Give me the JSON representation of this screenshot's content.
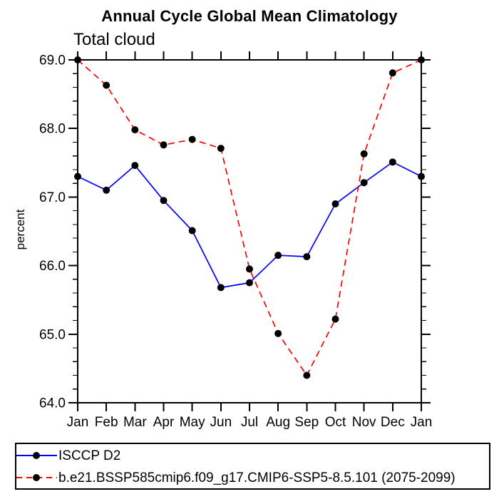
{
  "page": {
    "background": "#ffffff"
  },
  "chart_data": {
    "type": "line",
    "title": "Annual Cycle Global Mean Climatology",
    "subtitle": "Total cloud",
    "ylabel": "percent",
    "xlabel": "",
    "categories": [
      "Jan",
      "Feb",
      "Mar",
      "Apr",
      "May",
      "Jun",
      "Jul",
      "Aug",
      "Sep",
      "Oct",
      "Nov",
      "Dec",
      "Jan"
    ],
    "series": [
      {
        "name": "ISCCP D2",
        "color": "#0000ff",
        "line_style": "solid",
        "marker": "filled-circle",
        "marker_color": "#000000",
        "values": [
          67.3,
          67.1,
          67.46,
          66.95,
          66.51,
          65.68,
          65.75,
          66.15,
          66.13,
          66.9,
          67.21,
          67.51,
          67.3
        ]
      },
      {
        "name": "b.e21.BSSP585cmip6.f09_g17.CMIP6-SSP5-8.5.101 (2075-2099)",
        "color": "#ff0000",
        "line_style": "dashed",
        "marker": "filled-circle",
        "marker_color": "#000000",
        "values": [
          69.0,
          68.63,
          67.98,
          67.76,
          67.84,
          67.71,
          65.95,
          65.01,
          64.4,
          65.22,
          67.63,
          68.81,
          69.0
        ]
      }
    ],
    "ylim": [
      64.0,
      69.0
    ],
    "y_major_step": 1.0,
    "y_minor_step": 0.2,
    "y_tick_labels": [
      "64.0",
      "65.0",
      "66.0",
      "67.0",
      "68.0",
      "69.0"
    ],
    "grid": false,
    "legend_position": "bottom",
    "axis_color": "#000000",
    "tick_style": "outward-both-sides"
  }
}
